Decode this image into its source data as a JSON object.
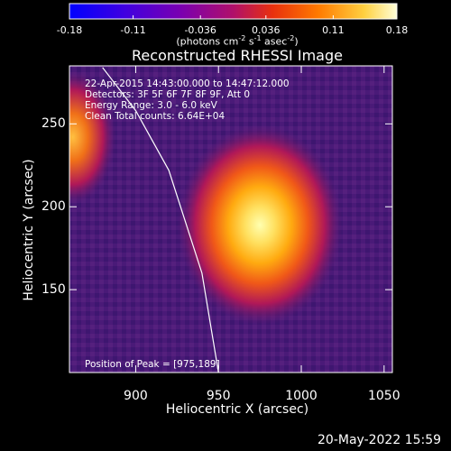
{
  "colorbar": {
    "ticks": [
      "-0.18",
      "-0.11",
      "-0.036",
      "0.036",
      "0.11",
      "0.18"
    ],
    "units_prefix": "(photons cm",
    "units_exp1": "-2",
    "units_mid": " s",
    "units_exp2": "-1",
    "units_mid2": " asec",
    "units_exp3": "-2",
    "units_suffix": ")"
  },
  "chart_data": {
    "type": "heatmap",
    "title": "Reconstructed RHESSI Image",
    "xlabel": "Heliocentric X (arcsec)",
    "ylabel": "Heliocentric Y (arcsec)",
    "xlim": [
      860,
      1055
    ],
    "ylim": [
      100,
      285
    ],
    "clim": [
      -0.18,
      0.18
    ],
    "colormap": [
      "#0000ff",
      "#7a00b0",
      "#5a1a78",
      "#b01858",
      "#e8401a",
      "#ff8c00",
      "#ffd240",
      "#ffffb0"
    ],
    "x_ticks": [
      "900",
      "950",
      "1000",
      "1050"
    ],
    "y_ticks": [
      "150",
      "200",
      "250"
    ],
    "sources": [
      {
        "x": 975,
        "y": 189,
        "peak": 0.18
      },
      {
        "x": 862,
        "y": 242,
        "peak": 0.11
      }
    ],
    "limb_points": [
      [
        880,
        284
      ],
      [
        900,
        258
      ],
      [
        920,
        222
      ],
      [
        940,
        160
      ],
      [
        950,
        100
      ]
    ],
    "annotations": {
      "time_range": "22-Apr-2015 14:43:00.000 to 14:47:12.000",
      "detectors": "Detectors: 3F 5F 6F 7F 8F 9F, Att 0",
      "energy": "Energy Range: 3.0 - 6.0 keV",
      "clean": "Clean    Total counts: 6.64E+04",
      "peak": "Position of Peak = [975,189]"
    }
  },
  "footer": {
    "date_stamp": "20-May-2022 15:59"
  }
}
